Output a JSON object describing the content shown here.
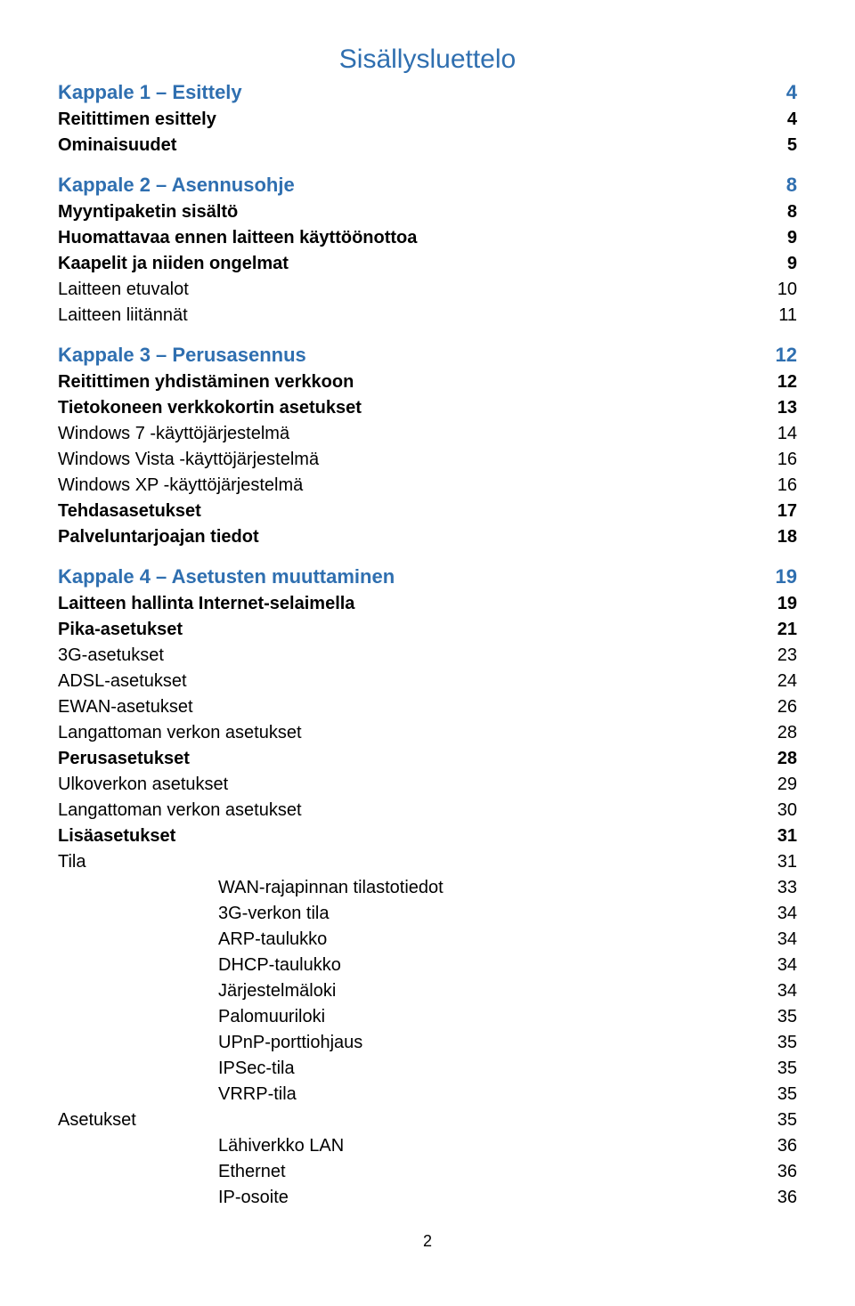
{
  "colors": {
    "blue": "#2f6fb0",
    "black": "#000000",
    "background": "#ffffff"
  },
  "typography": {
    "font_family": "Trebuchet MS",
    "title_fontsize": 30,
    "chapter_fontsize": 22,
    "entry_fontsize": 20
  },
  "title": "Sisällysluettelo",
  "page_number": "2",
  "toc": [
    {
      "label": "Kappale 1 – Esittely",
      "page": "4",
      "color": "blue",
      "weight": "bold",
      "indent": 0,
      "gap": false,
      "size": "chapter"
    },
    {
      "label": "Reitittimen esittely",
      "page": "4",
      "color": "black",
      "weight": "bold",
      "indent": 0,
      "gap": false
    },
    {
      "label": "Ominaisuudet",
      "page": "5",
      "color": "black",
      "weight": "bold",
      "indent": 0,
      "gap": false
    },
    {
      "label": "Kappale 2 – Asennusohje",
      "page": "8",
      "color": "blue",
      "weight": "bold",
      "indent": 0,
      "gap": true,
      "size": "chapter"
    },
    {
      "label": "Myyntipaketin sisältö",
      "page": "8",
      "color": "black",
      "weight": "bold",
      "indent": 0,
      "gap": false
    },
    {
      "label": "Huomattavaa ennen laitteen käyttöönottoa",
      "page": "9",
      "color": "black",
      "weight": "bold",
      "indent": 0,
      "gap": false
    },
    {
      "label": "Kaapelit ja niiden ongelmat",
      "page": "9",
      "color": "black",
      "weight": "bold",
      "indent": 0,
      "gap": false
    },
    {
      "label": "Laitteen etuvalot",
      "page": "10",
      "color": "black",
      "weight": "reg",
      "indent": 0,
      "gap": false
    },
    {
      "label": "Laitteen liitännät",
      "page": "11",
      "color": "black",
      "weight": "reg",
      "indent": 0,
      "gap": false
    },
    {
      "label": "Kappale 3 – Perusasennus",
      "page": "12",
      "color": "blue",
      "weight": "bold",
      "indent": 0,
      "gap": true,
      "size": "chapter"
    },
    {
      "label": "Reitittimen yhdistäminen verkkoon",
      "page": "12",
      "color": "black",
      "weight": "bold",
      "indent": 0,
      "gap": false
    },
    {
      "label": "Tietokoneen verkkokortin asetukset",
      "page": "13",
      "color": "black",
      "weight": "bold",
      "indent": 0,
      "gap": false
    },
    {
      "label": "Windows 7 -käyttöjärjestelmä",
      "page": "14",
      "color": "black",
      "weight": "reg",
      "indent": 0,
      "gap": false
    },
    {
      "label": "Windows Vista -käyttöjärjestelmä",
      "page": "16",
      "color": "black",
      "weight": "reg",
      "indent": 0,
      "gap": false
    },
    {
      "label": "Windows XP -käyttöjärjestelmä",
      "page": "16",
      "color": "black",
      "weight": "reg",
      "indent": 0,
      "gap": false
    },
    {
      "label": "Tehdasasetukset",
      "page": "17",
      "color": "black",
      "weight": "bold",
      "indent": 0,
      "gap": false
    },
    {
      "label": "Palveluntarjoajan tiedot",
      "page": "18",
      "color": "black",
      "weight": "bold",
      "indent": 0,
      "gap": false
    },
    {
      "label": "Kappale 4 – Asetusten muuttaminen",
      "page": "19",
      "color": "blue",
      "weight": "bold",
      "indent": 0,
      "gap": true,
      "size": "chapter"
    },
    {
      "label": "Laitteen hallinta Internet-selaimella",
      "page": "19",
      "color": "black",
      "weight": "bold",
      "indent": 0,
      "gap": false
    },
    {
      "label": "Pika-asetukset",
      "page": "21",
      "color": "black",
      "weight": "bold",
      "indent": 0,
      "gap": false
    },
    {
      "label": "3G-asetukset",
      "page": "23",
      "color": "black",
      "weight": "reg",
      "indent": 0,
      "gap": false
    },
    {
      "label": "ADSL-asetukset",
      "page": "24",
      "color": "black",
      "weight": "reg",
      "indent": 0,
      "gap": false
    },
    {
      "label": "EWAN-asetukset",
      "page": "26",
      "color": "black",
      "weight": "reg",
      "indent": 0,
      "gap": false
    },
    {
      "label": "Langattoman verkon asetukset",
      "page": "28",
      "color": "black",
      "weight": "reg",
      "indent": 0,
      "gap": false
    },
    {
      "label": "Perusasetukset",
      "page": "28",
      "color": "black",
      "weight": "bold",
      "indent": 0,
      "gap": false
    },
    {
      "label": "Ulkoverkon asetukset",
      "page": "29",
      "color": "black",
      "weight": "reg",
      "indent": 0,
      "gap": false
    },
    {
      "label": "Langattoman verkon asetukset",
      "page": "30",
      "color": "black",
      "weight": "reg",
      "indent": 0,
      "gap": false
    },
    {
      "label": "Lisäasetukset",
      "page": "31",
      "color": "black",
      "weight": "bold",
      "indent": 0,
      "gap": false
    },
    {
      "label": "Tila",
      "page": "31",
      "color": "black",
      "weight": "reg",
      "indent": 0,
      "gap": false
    },
    {
      "label": "WAN-rajapinnan tilastotiedot",
      "page": "33",
      "color": "black",
      "weight": "reg",
      "indent": 1,
      "gap": false
    },
    {
      "label": "3G-verkon tila",
      "page": "34",
      "color": "black",
      "weight": "reg",
      "indent": 1,
      "gap": false
    },
    {
      "label": "ARP-taulukko",
      "page": "34",
      "color": "black",
      "weight": "reg",
      "indent": 1,
      "gap": false
    },
    {
      "label": "DHCP-taulukko",
      "page": "34",
      "color": "black",
      "weight": "reg",
      "indent": 1,
      "gap": false
    },
    {
      "label": "Järjestelmäloki",
      "page": "34",
      "color": "black",
      "weight": "reg",
      "indent": 1,
      "gap": false
    },
    {
      "label": "Palomuuriloki",
      "page": "35",
      "color": "black",
      "weight": "reg",
      "indent": 1,
      "gap": false
    },
    {
      "label": "UPnP-porttiohjaus",
      "page": "35",
      "color": "black",
      "weight": "reg",
      "indent": 1,
      "gap": false
    },
    {
      "label": "IPSec-tila",
      "page": "35",
      "color": "black",
      "weight": "reg",
      "indent": 1,
      "gap": false
    },
    {
      "label": "VRRP-tila",
      "page": "35",
      "color": "black",
      "weight": "reg",
      "indent": 1,
      "gap": false
    },
    {
      "label": "Asetukset",
      "page": "35",
      "color": "black",
      "weight": "reg",
      "indent": 0,
      "gap": false
    },
    {
      "label": "Lähiverkko LAN",
      "page": "36",
      "color": "black",
      "weight": "reg",
      "indent": 1,
      "gap": false
    },
    {
      "label": "Ethernet",
      "page": "36",
      "color": "black",
      "weight": "reg",
      "indent": 1,
      "gap": false
    },
    {
      "label": "IP-osoite",
      "page": "36",
      "color": "black",
      "weight": "reg",
      "indent": 1,
      "gap": false
    }
  ]
}
